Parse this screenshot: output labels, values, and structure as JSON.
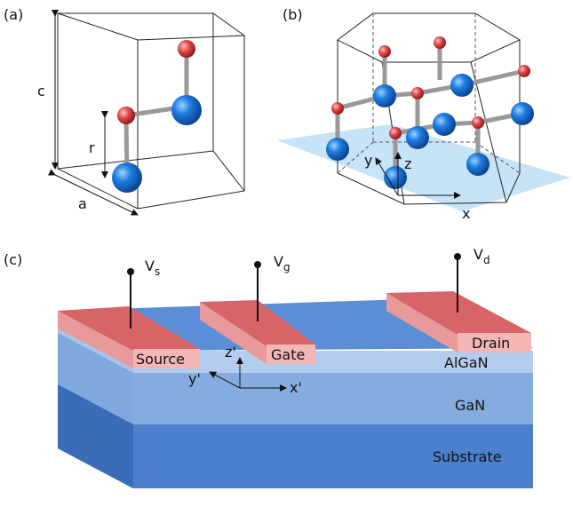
{
  "panels": {
    "a": {
      "label": "(a)",
      "dims": {
        "c": "c",
        "r": "r",
        "a": "a"
      }
    },
    "b": {
      "label": "(b)",
      "axes": {
        "x": "x",
        "y": "y",
        "z": "z"
      }
    },
    "c": {
      "label": "(c)",
      "terminals": [
        {
          "base": "V",
          "sub": "s"
        },
        {
          "base": "V",
          "sub": "g"
        },
        {
          "base": "V",
          "sub": "d"
        }
      ],
      "electrodes": [
        "Source",
        "Gate",
        "Drain"
      ],
      "layers": [
        "AlGaN",
        "GaN",
        "Substrate"
      ],
      "axes": {
        "x": "x'",
        "y": "y'",
        "z": "z'"
      }
    }
  }
}
